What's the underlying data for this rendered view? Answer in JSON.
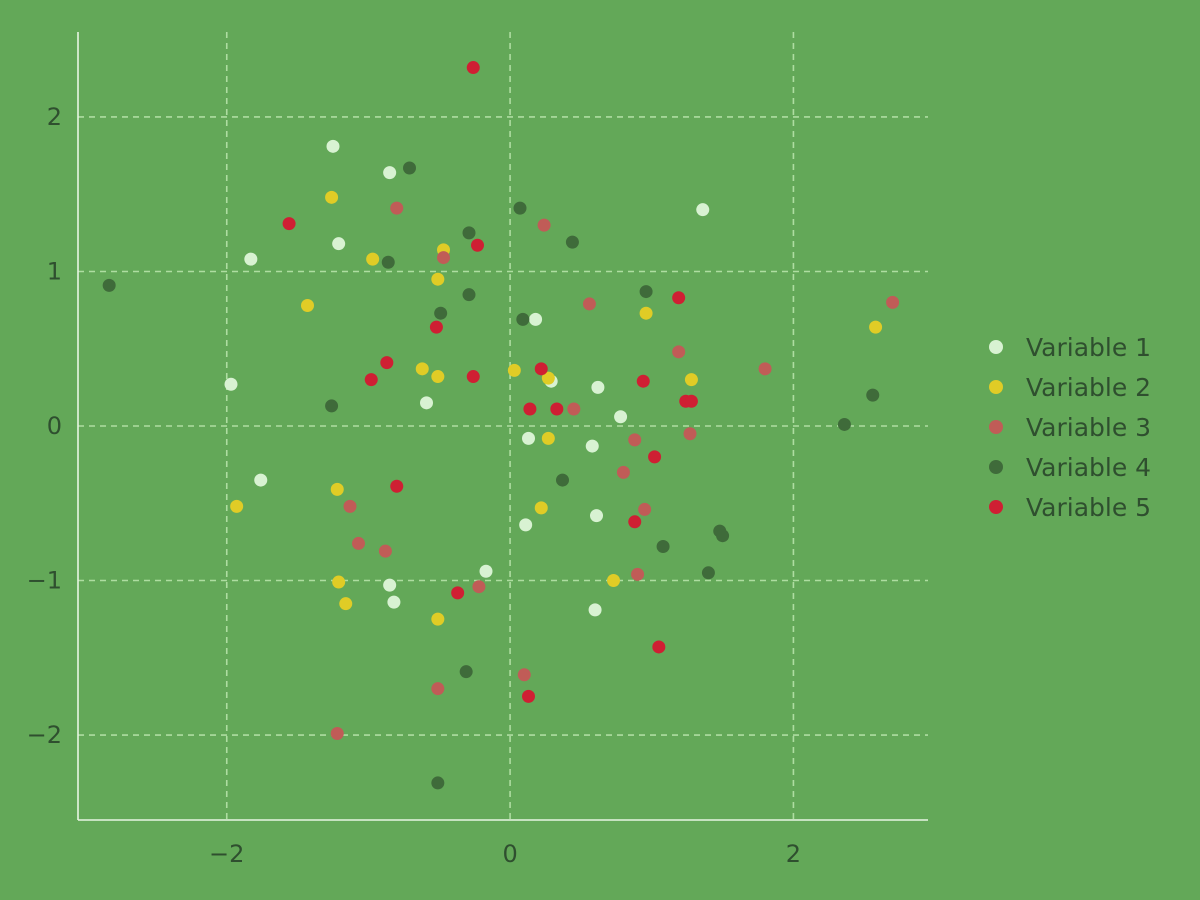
{
  "chart_data": {
    "type": "scatter",
    "title": "",
    "xlabel": "",
    "ylabel": "",
    "xlim": [
      -3.05,
      2.95
    ],
    "ylim": [
      -2.55,
      2.55
    ],
    "xticks": [
      -2,
      0,
      2
    ],
    "yticks": [
      -2,
      -1,
      0,
      1,
      2
    ],
    "xtick_labels": [
      "−2",
      "0",
      "2"
    ],
    "ytick_labels": [
      "−2",
      "−1",
      "0",
      "1",
      "2"
    ],
    "grid": true,
    "legend": "right",
    "series": [
      {
        "name": "Variable 1",
        "color": "#d8f2d2",
        "points": [
          [
            -1.25,
            1.81
          ],
          [
            -0.85,
            1.64
          ],
          [
            -1.83,
            1.08
          ],
          [
            -1.21,
            1.18
          ],
          [
            1.36,
            1.4
          ],
          [
            0.18,
            0.69
          ],
          [
            -1.97,
            0.27
          ],
          [
            -0.59,
            0.15
          ],
          [
            0.29,
            0.29
          ],
          [
            0.62,
            0.25
          ],
          [
            0.78,
            0.06
          ],
          [
            0.13,
            -0.08
          ],
          [
            0.58,
            -0.13
          ],
          [
            -1.76,
            -0.35
          ],
          [
            0.11,
            -0.64
          ],
          [
            0.61,
            -0.58
          ],
          [
            -0.17,
            -0.94
          ],
          [
            -0.85,
            -1.03
          ],
          [
            -0.82,
            -1.14
          ],
          [
            0.6,
            -1.19
          ]
        ]
      },
      {
        "name": "Variable 2",
        "color": "#e0cc26",
        "points": [
          [
            -1.26,
            1.48
          ],
          [
            -0.97,
            1.08
          ],
          [
            -0.47,
            1.14
          ],
          [
            -0.51,
            0.95
          ],
          [
            -1.43,
            0.78
          ],
          [
            0.96,
            0.73
          ],
          [
            2.58,
            0.64
          ],
          [
            -0.62,
            0.37
          ],
          [
            -0.51,
            0.32
          ],
          [
            0.03,
            0.36
          ],
          [
            0.27,
            0.31
          ],
          [
            1.28,
            0.3
          ],
          [
            0.27,
            -0.08
          ],
          [
            -1.93,
            -0.52
          ],
          [
            -1.22,
            -0.41
          ],
          [
            0.22,
            -0.53
          ],
          [
            -1.21,
            -1.01
          ],
          [
            0.73,
            -1.0
          ],
          [
            -1.16,
            -1.15
          ],
          [
            -0.51,
            -1.25
          ]
        ]
      },
      {
        "name": "Variable 3",
        "color": "#c05c57",
        "points": [
          [
            -0.8,
            1.41
          ],
          [
            0.24,
            1.3
          ],
          [
            -0.47,
            1.09
          ],
          [
            0.56,
            0.79
          ],
          [
            2.7,
            0.8
          ],
          [
            1.19,
            0.48
          ],
          [
            1.8,
            0.37
          ],
          [
            0.45,
            0.11
          ],
          [
            0.88,
            -0.09
          ],
          [
            1.27,
            -0.05
          ],
          [
            0.8,
            -0.3
          ],
          [
            -1.13,
            -0.52
          ],
          [
            0.95,
            -0.54
          ],
          [
            -1.07,
            -0.76
          ],
          [
            -0.88,
            -0.81
          ],
          [
            0.9,
            -0.96
          ],
          [
            -0.22,
            -1.04
          ],
          [
            0.1,
            -1.61
          ],
          [
            -0.51,
            -1.7
          ],
          [
            -1.22,
            -1.99
          ]
        ]
      },
      {
        "name": "Variable 4",
        "color": "#3f6b3a",
        "points": [
          [
            -0.71,
            1.67
          ],
          [
            0.07,
            1.41
          ],
          [
            -0.29,
            1.25
          ],
          [
            0.44,
            1.19
          ],
          [
            -0.86,
            1.06
          ],
          [
            -2.83,
            0.91
          ],
          [
            -0.29,
            0.85
          ],
          [
            0.96,
            0.87
          ],
          [
            -0.49,
            0.73
          ],
          [
            0.09,
            0.69
          ],
          [
            2.56,
            0.2
          ],
          [
            -1.26,
            0.13
          ],
          [
            2.36,
            0.01
          ],
          [
            0.37,
            -0.35
          ],
          [
            1.08,
            -0.78
          ],
          [
            1.48,
            -0.68
          ],
          [
            1.5,
            -0.71
          ],
          [
            1.4,
            -0.95
          ],
          [
            -0.31,
            -1.59
          ],
          [
            -0.51,
            -2.31
          ]
        ]
      },
      {
        "name": "Variable 5",
        "color": "#cf1f33",
        "points": [
          [
            -0.26,
            2.32
          ],
          [
            -1.56,
            1.31
          ],
          [
            -0.23,
            1.17
          ],
          [
            1.19,
            0.83
          ],
          [
            -0.52,
            0.64
          ],
          [
            0.22,
            0.37
          ],
          [
            -0.87,
            0.41
          ],
          [
            -0.98,
            0.3
          ],
          [
            -0.26,
            0.32
          ],
          [
            0.94,
            0.29
          ],
          [
            0.14,
            0.11
          ],
          [
            0.33,
            0.11
          ],
          [
            1.24,
            0.16
          ],
          [
            1.28,
            0.16
          ],
          [
            1.02,
            -0.2
          ],
          [
            -0.8,
            -0.39
          ],
          [
            0.88,
            -0.62
          ],
          [
            -0.37,
            -1.08
          ],
          [
            1.05,
            -1.43
          ],
          [
            0.13,
            -1.75
          ]
        ]
      }
    ]
  }
}
